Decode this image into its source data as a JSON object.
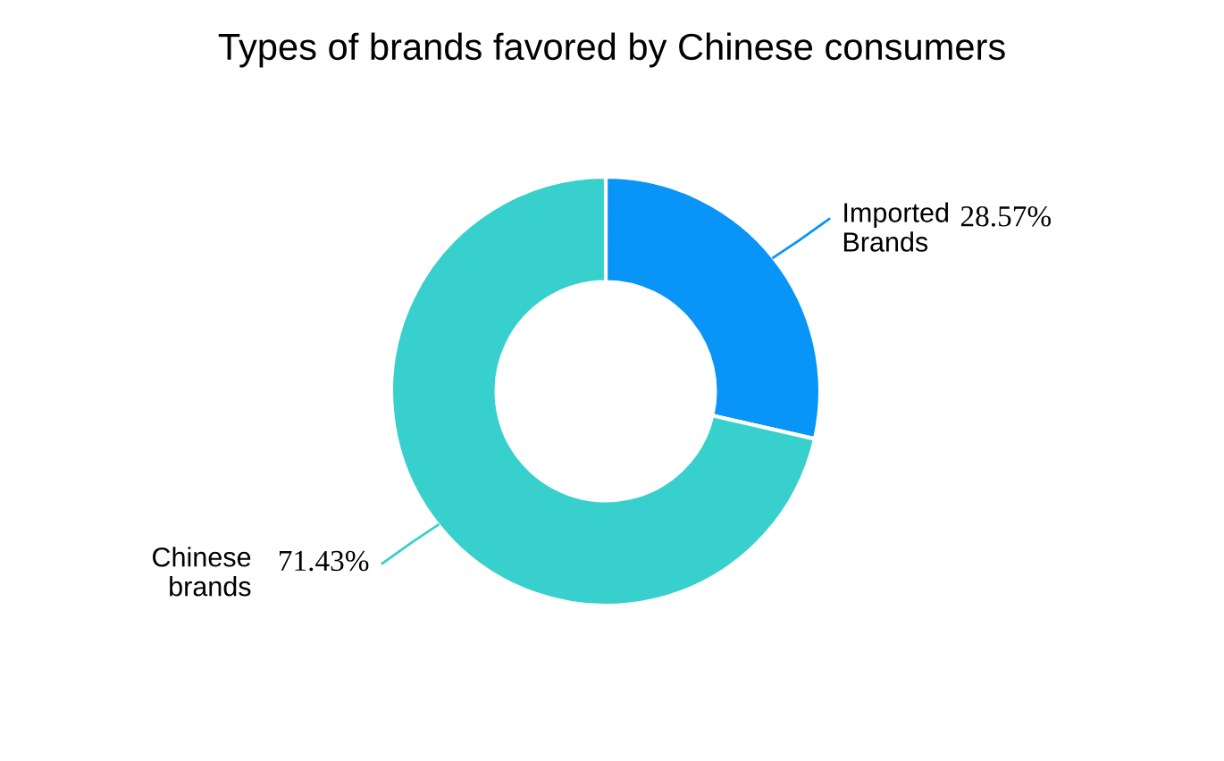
{
  "chart_data": {
    "type": "donut",
    "title": "Types of brands favored by Chinese consumers",
    "categories": [
      "Imported\nBrands",
      "Chinese\nbrands"
    ],
    "values": [
      28.57,
      71.43
    ],
    "colors": [
      "#0895f7",
      "#38d0cc"
    ],
    "value_labels": [
      "28.57%",
      "71.43%"
    ]
  }
}
